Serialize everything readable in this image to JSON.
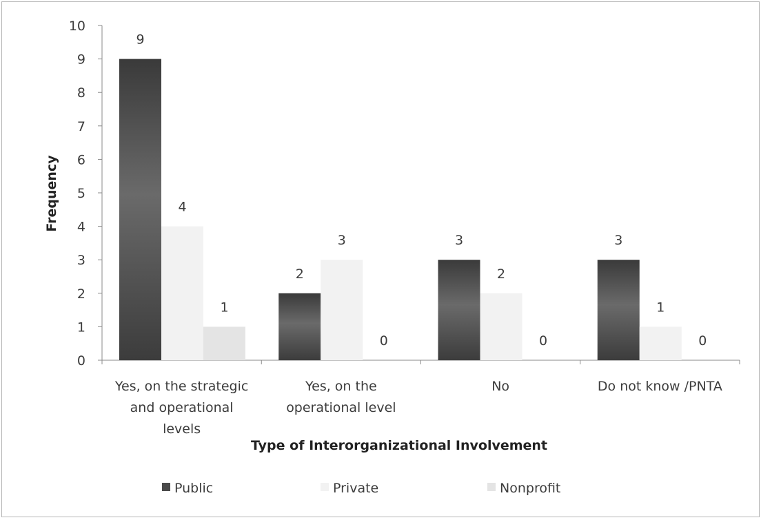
{
  "chart_data": {
    "type": "bar",
    "title": "",
    "xlabel": "Type of Interorganizational Involvement",
    "ylabel": "Frequency",
    "ylim": [
      0,
      10
    ],
    "yticks": [
      0,
      1,
      2,
      3,
      4,
      5,
      6,
      7,
      8,
      9,
      10
    ],
    "categories": [
      [
        "Yes, on the strategic",
        "and operational",
        "levels"
      ],
      [
        "Yes, on the",
        "operational level"
      ],
      [
        "No"
      ],
      [
        "Do not know /PNTA"
      ]
    ],
    "series": [
      {
        "name": "Public",
        "values": [
          9,
          2,
          3,
          3
        ],
        "color": "#505050"
      },
      {
        "name": "Private",
        "values": [
          4,
          3,
          2,
          1
        ],
        "color": "#f2f2f2"
      },
      {
        "name": "Nonprofit",
        "values": [
          1,
          0,
          0,
          0
        ],
        "color": "#e4e4e4"
      }
    ],
    "grid": false,
    "data_labels": true,
    "legend_position": "bottom"
  }
}
